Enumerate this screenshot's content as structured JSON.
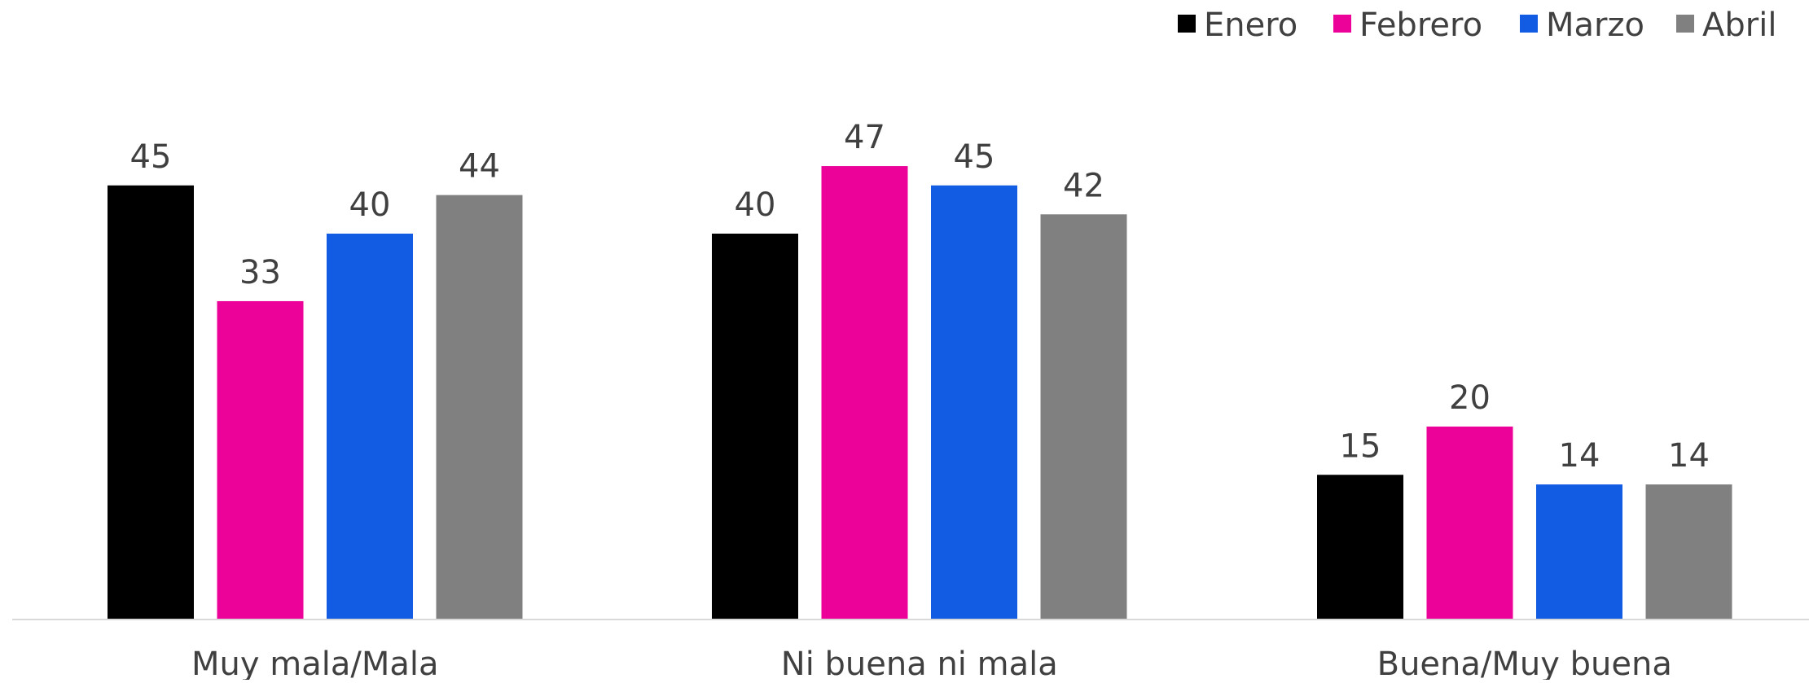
{
  "chart_data": {
    "type": "bar",
    "categories": [
      "Muy mala/Mala",
      "Ni buena ni mala",
      "Buena/Muy buena"
    ],
    "series": [
      {
        "name": "Enero",
        "color": "#000000",
        "values": [
          45,
          40,
          15
        ]
      },
      {
        "name": "Febrero",
        "color": "#EC0299",
        "values": [
          33,
          47,
          20
        ]
      },
      {
        "name": "Marzo",
        "color": "#125BE3",
        "values": [
          40,
          45,
          14
        ]
      },
      {
        "name": "Abril",
        "color": "#808080",
        "values": [
          44,
          42,
          14
        ]
      }
    ],
    "title": "",
    "xlabel": "",
    "ylabel": "",
    "ylim": [
      0,
      50
    ],
    "grid": false,
    "legend": "top-right",
    "data_labels": true
  }
}
